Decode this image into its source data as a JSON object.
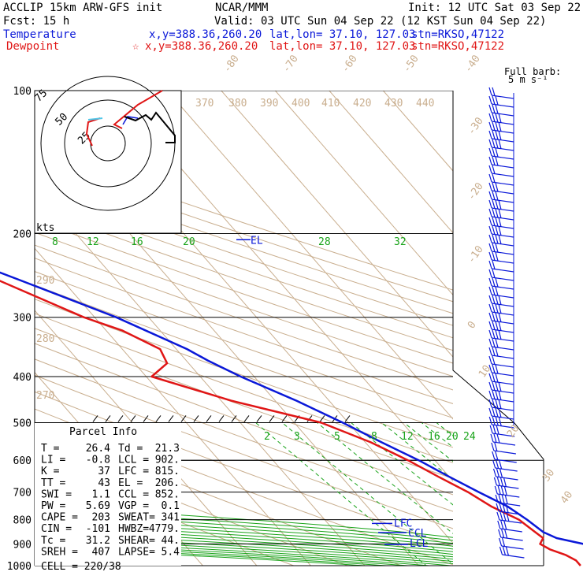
{
  "header": {
    "model": "ACCLIP 15km ARW-GFS init",
    "fcst": "Fcst:   15 h",
    "center": "NCAR/MMM",
    "init": "Init: 12 UTC Sat 03 Sep 22",
    "valid": "Valid: 03 UTC Sun 04 Sep 22 (12 KST Sun 04 Sep 22)"
  },
  "legend": {
    "temperature": {
      "label": "Temperature",
      "loc": "x,y=388.36,260.20",
      "latlon": "lat,lon= 37.10, 127.03",
      "stn": "stn=RKSO,47122",
      "color": "#0a18d8"
    },
    "dewpoint": {
      "label": "Dewpoint",
      "marker": "☆",
      "loc": "x,y=388.36,260.20",
      "latlon": "lat,lon= 37.10, 127.03",
      "stn": "stn=RKSO,47122",
      "color": "#e01616"
    }
  },
  "barb_key": {
    "title": "Full barb:",
    "value": "5 m s⁻¹"
  },
  "hodograph": {
    "rings": [
      "25",
      "50",
      "75"
    ],
    "unit": "kts"
  },
  "parcel_info": {
    "title": "Parcel Info",
    "rows": [
      [
        "T  =",
        "26.4",
        "Td =",
        "21.3"
      ],
      [
        "LI =",
        "-0.8",
        "LCL =",
        "902."
      ],
      [
        "K  =",
        "37",
        "LFC =",
        "815."
      ],
      [
        "TT =",
        "43",
        "EL =",
        "206."
      ],
      [
        "SWI =",
        "1.1",
        "CCL =",
        "852."
      ],
      [
        "PW =",
        "5.69",
        "VGP =",
        "0.1"
      ],
      [
        "CAPE =",
        "203",
        "SWEAT=",
        "341"
      ],
      [
        "CIN =",
        "-101",
        "HWBZ=",
        "4779."
      ],
      [
        "Tc =",
        "31.2",
        "SHEAR=",
        "44."
      ],
      [
        "SREH =",
        "407",
        "LAPSE=",
        "5.4"
      ]
    ],
    "cell": "CELL = 220/38"
  },
  "chart_data": {
    "type": "line",
    "yaxis": {
      "label": "pressure",
      "scale": "log",
      "ticks": [
        100,
        200,
        300,
        400,
        500,
        600,
        700,
        800,
        900,
        1000
      ]
    },
    "temperature_isotherm_labels": [
      "-80",
      "-70",
      "-60",
      "-50",
      "-40",
      "-30",
      "-20",
      "-10",
      "0",
      "10",
      "20",
      "30",
      "40"
    ],
    "theta_labels_top": [
      "370",
      "380",
      "390",
      "400",
      "410",
      "420",
      "430",
      "440"
    ],
    "theta_labels_left": [
      "290",
      "280",
      "270"
    ],
    "mixing_ratio_labels_200": [
      "8",
      "12",
      "16",
      "20",
      "28",
      "32"
    ],
    "mixing_ratio_labels_550": [
      "2",
      "3",
      "5",
      "8",
      "12",
      "16",
      "20",
      "24"
    ],
    "level_labels": [
      "EL",
      "LFC",
      "CCL",
      "LCL"
    ],
    "series": [
      {
        "name": "Temperature",
        "color": "#0a18d8",
        "points": [
          [
            1000,
            30
          ],
          [
            985,
            27
          ],
          [
            950,
            25
          ],
          [
            925,
            25
          ],
          [
            900,
            24
          ],
          [
            875,
            20
          ],
          [
            850,
            18.5
          ],
          [
            800,
            17.5
          ],
          [
            750,
            16
          ],
          [
            700,
            13
          ],
          [
            650,
            10
          ],
          [
            600,
            7
          ],
          [
            550,
            3
          ],
          [
            500,
            -1
          ],
          [
            450,
            -6
          ],
          [
            400,
            -12.5
          ],
          [
            370,
            -16
          ],
          [
            350,
            -18
          ],
          [
            300,
            -26
          ],
          [
            250,
            -38
          ],
          [
            200,
            -53
          ],
          [
            175,
            -60
          ],
          [
            150,
            -66
          ],
          [
            125,
            -69
          ],
          [
            110,
            -70
          ],
          [
            100,
            -71
          ]
        ]
      },
      {
        "name": "Dewpoint",
        "color": "#e01616",
        "points": [
          [
            1000,
            20
          ],
          [
            975,
            20
          ],
          [
            950,
            19
          ],
          [
            925,
            17
          ],
          [
            900,
            16
          ],
          [
            875,
            17.5
          ],
          [
            850,
            17
          ],
          [
            800,
            16
          ],
          [
            750,
            13
          ],
          [
            700,
            11
          ],
          [
            650,
            8
          ],
          [
            600,
            5
          ],
          [
            550,
            1
          ],
          [
            500,
            -5
          ],
          [
            450,
            -18
          ],
          [
            400,
            -29
          ],
          [
            375,
            -24
          ],
          [
            350,
            -23
          ],
          [
            320,
            -27
          ],
          [
            300,
            -32
          ],
          [
            250,
            -42
          ],
          [
            200,
            -58
          ],
          [
            185,
            -62
          ],
          [
            160,
            -65
          ],
          [
            140,
            -67
          ],
          [
            125,
            -70
          ],
          [
            110,
            -72
          ],
          [
            100,
            -74
          ]
        ]
      }
    ]
  }
}
